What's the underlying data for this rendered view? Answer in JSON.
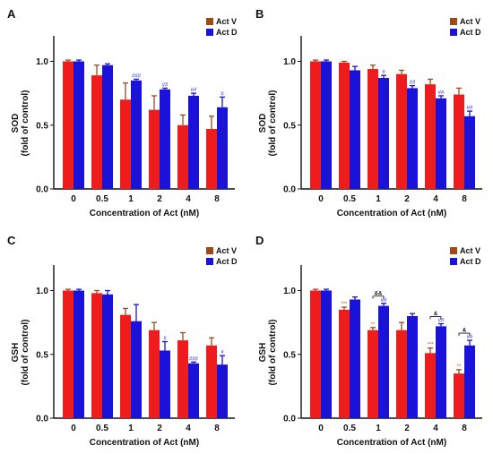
{
  "colors": {
    "act_v": "#ee1c1c",
    "act_d": "#1a12d8",
    "err_v": "#9c4a1a",
    "err_d": "#1a12d8",
    "legend_v": "#9c4a1a",
    "legend_d": "#1a12d8"
  },
  "chart_data": [
    {
      "panel": "A",
      "type": "bar",
      "categories": [
        "0",
        "0.5",
        "1",
        "2",
        "4",
        "8"
      ],
      "ylabel_line1": "SOD",
      "ylabel_line2": "(fold of control)",
      "xlabel": "Concentration of Act (nM)",
      "ylim": [
        0,
        1.2
      ],
      "yticks": [
        "0.0",
        "0.5",
        "1.0"
      ],
      "series": [
        {
          "name": "Act V",
          "values": [
            1.0,
            0.89,
            0.7,
            0.62,
            0.5,
            0.47
          ],
          "errors": [
            0.01,
            0.08,
            0.13,
            0.11,
            0.08,
            0.1
          ]
        },
        {
          "name": "Act D",
          "values": [
            1.0,
            0.97,
            0.85,
            0.78,
            0.73,
            0.64
          ],
          "errors": [
            0.01,
            0.01,
            0.01,
            0.01,
            0.02,
            0.08
          ]
        }
      ],
      "annotations_d": [
        "",
        "",
        "###",
        "##",
        "##",
        "#"
      ]
    },
    {
      "panel": "B",
      "type": "bar",
      "categories": [
        "0",
        "0.5",
        "1",
        "2",
        "4",
        "8"
      ],
      "ylabel_line1": "SOD",
      "ylabel_line2": "(fold of control)",
      "xlabel": "Concentration of Act (nM)",
      "ylim": [
        0,
        1.2
      ],
      "yticks": [
        "0.0",
        "0.5",
        "1.0"
      ],
      "series": [
        {
          "name": "Act V",
          "values": [
            1.0,
            0.99,
            0.94,
            0.9,
            0.82,
            0.74
          ],
          "errors": [
            0.01,
            0.01,
            0.03,
            0.03,
            0.04,
            0.05
          ]
        },
        {
          "name": "Act D",
          "values": [
            1.0,
            0.93,
            0.87,
            0.79,
            0.71,
            0.57
          ],
          "errors": [
            0.01,
            0.03,
            0.02,
            0.02,
            0.02,
            0.04
          ]
        }
      ],
      "annotations_d": [
        "",
        "",
        "#",
        "##",
        "##",
        "##"
      ]
    },
    {
      "panel": "C",
      "type": "bar",
      "categories": [
        "0",
        "0.5",
        "1",
        "2",
        "4",
        "8"
      ],
      "ylabel_line1": "GSH",
      "ylabel_line2": "(fold of control)",
      "xlabel": "Concentration of Act (nM)",
      "ylim": [
        0,
        1.2
      ],
      "yticks": [
        "0.0",
        "0.5",
        "1.0"
      ],
      "series": [
        {
          "name": "Act V",
          "values": [
            1.0,
            0.98,
            0.81,
            0.69,
            0.61,
            0.57
          ],
          "errors": [
            0.01,
            0.02,
            0.05,
            0.06,
            0.06,
            0.06
          ]
        },
        {
          "name": "Act D",
          "values": [
            1.0,
            0.97,
            0.76,
            0.53,
            0.43,
            0.42
          ],
          "errors": [
            0.01,
            0.03,
            0.13,
            0.07,
            0.01,
            0.07
          ]
        }
      ],
      "annotations_d": [
        "",
        "",
        "",
        "#",
        "###",
        "#"
      ]
    },
    {
      "panel": "D",
      "type": "bar",
      "categories": [
        "0",
        "0.5",
        "1",
        "2",
        "4",
        "8"
      ],
      "ylabel_line1": "GSH",
      "ylabel_line2": "(fold of control)",
      "xlabel": "Concentration of Act (nM)",
      "ylim": [
        0,
        1.2
      ],
      "yticks": [
        "0.0",
        "0.5",
        "1.0"
      ],
      "series": [
        {
          "name": "Act V",
          "values": [
            1.0,
            0.85,
            0.69,
            0.69,
            0.51,
            0.35
          ],
          "errors": [
            0.01,
            0.02,
            0.02,
            0.06,
            0.04,
            0.03
          ]
        },
        {
          "name": "Act D",
          "values": [
            1.0,
            0.93,
            0.88,
            0.8,
            0.72,
            0.57
          ],
          "errors": [
            0.01,
            0.02,
            0.02,
            0.02,
            0.02,
            0.04
          ]
        }
      ],
      "annotations_d": [
        "",
        "",
        "##",
        "",
        "##",
        "##"
      ],
      "annotations_v": [
        "",
        "***",
        "**",
        "",
        "***",
        "**"
      ],
      "brackets": [
        {
          "category_index": 2,
          "label": "&&"
        },
        {
          "category_index": 4,
          "label": "&"
        },
        {
          "category_index": 5,
          "label": "&"
        }
      ]
    }
  ]
}
